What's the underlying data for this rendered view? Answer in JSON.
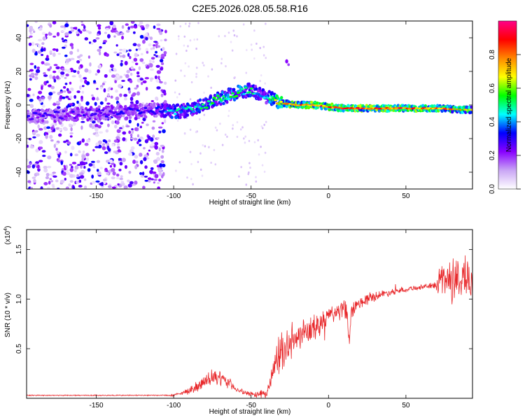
{
  "title": "C2E5.2026.028.05.58.R16",
  "chart_data": [
    {
      "type": "heatmap",
      "xlabel": "Height of straight line (km)",
      "ylabel": "Frequency (Hz)",
      "xlim": [
        -195,
        93
      ],
      "ylim": [
        -50,
        50
      ],
      "xticks": [
        -150,
        -100,
        -50,
        0,
        50
      ],
      "yticks": [
        -40,
        -20,
        0,
        20,
        40
      ],
      "colorbar": {
        "label": "Normalized spectral amplitude",
        "range": [
          0,
          1
        ],
        "ticks": [
          "0.0",
          "0.2",
          "0.4",
          "0.6",
          "0.8"
        ],
        "colormap": [
          "#ffffff",
          "#c9a6f5",
          "#8800ff",
          "#0000ff",
          "#00ffff",
          "#00ff00",
          "#ffff00",
          "#ff8800",
          "#ff0000",
          "#ff0088"
        ]
      },
      "ridge": {
        "x": [
          -195,
          -150,
          -110,
          -100,
          -90,
          -80,
          -70,
          -60,
          -50,
          -45,
          -40,
          -35,
          -30,
          -20,
          -10,
          0,
          10,
          30,
          50,
          70,
          93
        ],
        "frequency": [
          -7,
          -5,
          -3,
          -4,
          -3,
          0,
          4,
          7,
          9,
          7,
          5,
          3,
          1,
          0,
          0,
          -1,
          -2,
          -2,
          -2,
          -2,
          -3
        ],
        "amplitude": [
          0.3,
          0.32,
          0.35,
          0.55,
          0.5,
          0.55,
          0.6,
          0.62,
          0.55,
          0.5,
          0.45,
          0.8,
          0.85,
          0.9,
          0.95,
          0.95,
          0.95,
          0.95,
          0.95,
          0.9,
          0.75
        ]
      },
      "noise_region": [
        -195,
        -105
      ],
      "blob": {
        "x": -27,
        "frequency": 26
      }
    },
    {
      "type": "line",
      "xlabel": "Height of straight line (km)",
      "ylabel": "SNR (10 * v/v)",
      "yunit": "(x10",
      "yunit_exp": "4",
      "yunit_close": ")",
      "xlim": [
        -195,
        93
      ],
      "ylim": [
        0,
        1.7
      ],
      "xticks": [
        -150,
        -100,
        -50,
        0,
        50
      ],
      "yticks": [
        "0.5",
        "1.0",
        "1.5"
      ],
      "color": "#e8282b",
      "series": [
        {
          "x": [
            -195,
            -170,
            -150,
            -120,
            -110,
            -100,
            -95,
            -90,
            -85,
            -80,
            -75,
            -70,
            -65,
            -60,
            -55,
            -50,
            -45,
            -40,
            -38,
            -35,
            -32,
            -30,
            -28,
            -25,
            -20,
            -15,
            -10,
            -5,
            0,
            5,
            10,
            12,
            13,
            15,
            20,
            25,
            30,
            40,
            50,
            60,
            65,
            70,
            72,
            75,
            80,
            85,
            88,
            90,
            93
          ],
          "y": [
            0.03,
            0.03,
            0.03,
            0.03,
            0.03,
            0.03,
            0.05,
            0.08,
            0.12,
            0.16,
            0.2,
            0.2,
            0.16,
            0.1,
            0.06,
            0.04,
            0.04,
            0.05,
            0.12,
            0.3,
            0.42,
            0.48,
            0.5,
            0.55,
            0.6,
            0.65,
            0.7,
            0.75,
            0.82,
            0.87,
            0.9,
            0.85,
            0.55,
            0.88,
            0.95,
            1.0,
            1.03,
            1.07,
            1.1,
            1.12,
            1.13,
            1.14,
            1.2,
            1.22,
            1.18,
            1.2,
            1.25,
            1.2,
            1.1
          ],
          "noise": [
            0.005,
            0.005,
            0.005,
            0.005,
            0.005,
            0.01,
            0.015,
            0.03,
            0.05,
            0.06,
            0.07,
            0.06,
            0.05,
            0.03,
            0.02,
            0.02,
            0.03,
            0.04,
            0.1,
            0.15,
            0.15,
            0.15,
            0.15,
            0.14,
            0.13,
            0.12,
            0.12,
            0.1,
            0.1,
            0.08,
            0.08,
            0.1,
            0.1,
            0.07,
            0.06,
            0.05,
            0.04,
            0.03,
            0.025,
            0.02,
            0.02,
            0.05,
            0.15,
            0.18,
            0.2,
            0.22,
            0.2,
            0.18,
            0.15
          ]
        }
      ]
    }
  ]
}
